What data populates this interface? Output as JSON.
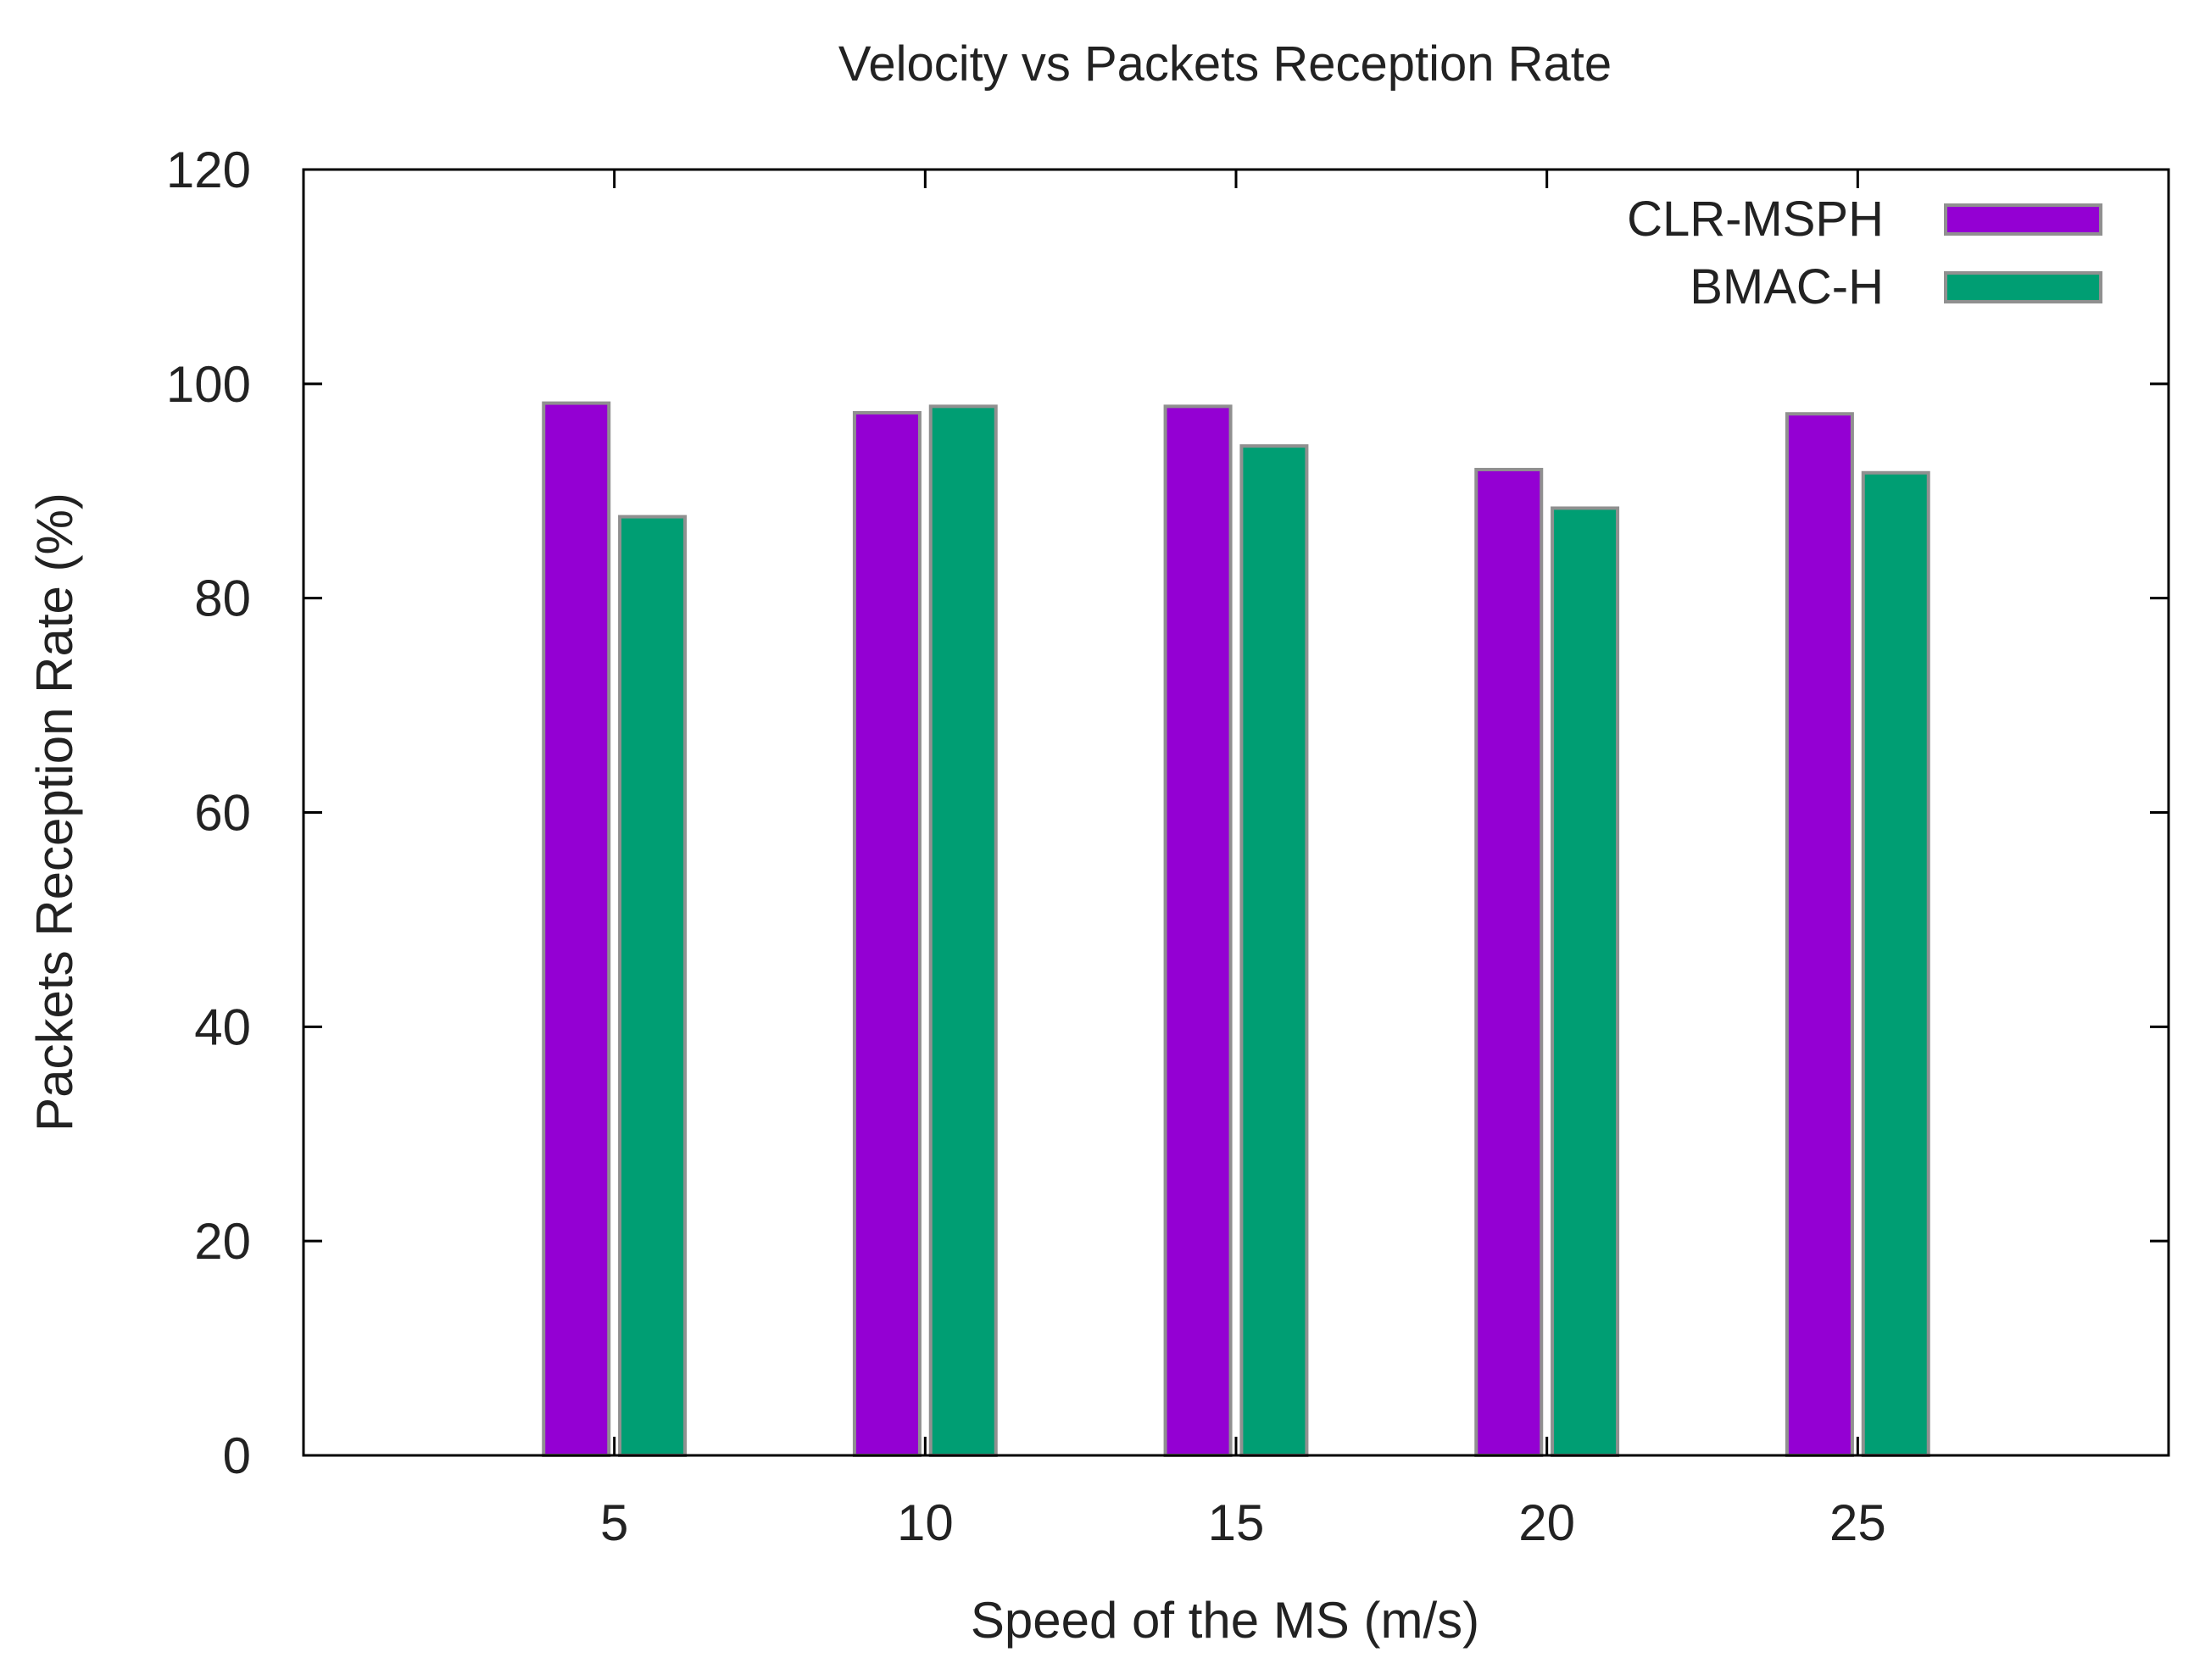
{
  "chart_data": {
    "type": "bar",
    "title": "Velocity vs Packets Reception Rate",
    "xlabel": "Speed of the MS (m/s)",
    "ylabel": "Packets Reception Rate (%)",
    "categories": [
      "5",
      "10",
      "15",
      "20",
      "25"
    ],
    "series": [
      {
        "name": "CLR-MSPH",
        "color": "#9400d3",
        "values": [
          98.2,
          97.3,
          97.9,
          92.0,
          97.2
        ]
      },
      {
        "name": "BMAC-H",
        "color": "#009e73",
        "values": [
          87.6,
          97.9,
          94.2,
          88.4,
          91.7
        ]
      }
    ],
    "ylim": [
      0,
      120
    ],
    "yticks": [
      0,
      20,
      40,
      60,
      80,
      100,
      120
    ],
    "grid": false,
    "legend": "top-right"
  }
}
